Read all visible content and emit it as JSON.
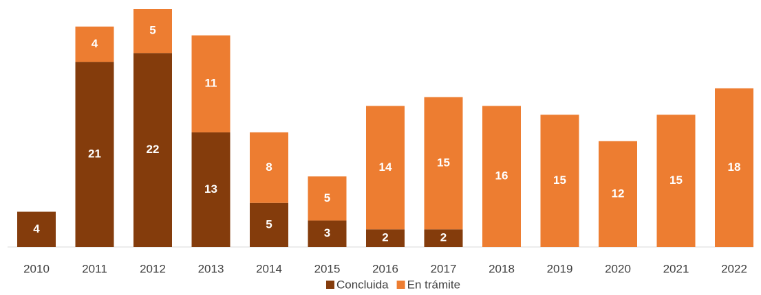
{
  "chart_data": {
    "type": "stacked_bar",
    "categories": [
      "2010",
      "2011",
      "2012",
      "2013",
      "2014",
      "2015",
      "2016",
      "2017",
      "2018",
      "2019",
      "2020",
      "2021",
      "2022"
    ],
    "series": [
      {
        "name": "Concluida",
        "color": "#843c0c",
        "values": [
          4,
          21,
          22,
          13,
          5,
          3,
          2,
          2,
          null,
          null,
          null,
          null,
          null
        ]
      },
      {
        "name": "En trámite",
        "color": "#ed7d31",
        "values": [
          null,
          4,
          5,
          11,
          8,
          5,
          14,
          15,
          16,
          15,
          12,
          15,
          18
        ]
      }
    ]
  }
}
